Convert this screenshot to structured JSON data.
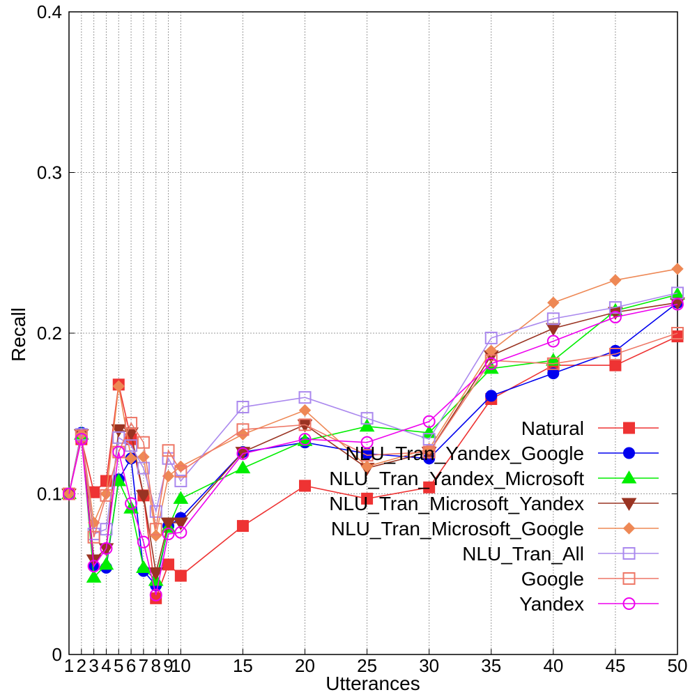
{
  "chart_data": {
    "type": "line",
    "xlabel": "Utterances",
    "ylabel": "Recall",
    "xlim": [
      1,
      50
    ],
    "ylim": [
      0,
      0.4
    ],
    "grid": true,
    "legend_position": "bottom-right",
    "x": [
      1,
      2,
      3,
      4,
      5,
      6,
      7,
      8,
      9,
      10,
      15,
      20,
      25,
      30,
      35,
      40,
      45,
      50
    ],
    "x_tick_labels": [
      "1",
      "2",
      "3",
      "4",
      "5",
      "6",
      "7",
      "8",
      "9",
      "10",
      "15",
      "20",
      "25",
      "30",
      "35",
      "40",
      "45",
      "50"
    ],
    "y_ticks": [
      0,
      0.1,
      0.2,
      0.3,
      0.4
    ],
    "y_tick_labels": [
      "0",
      "0.1",
      "0.2",
      "0.3",
      "0.4"
    ],
    "series": [
      {
        "name": "Natural",
        "color": "#ee3333",
        "marker": "square-filled",
        "values": [
          0.1,
          0.134,
          0.101,
          0.108,
          0.168,
          0.134,
          0.099,
          0.035,
          0.056,
          0.049,
          0.08,
          0.105,
          0.097,
          0.104,
          0.159,
          0.18,
          0.18,
          0.198
        ]
      },
      {
        "name": "NLU_Tran_Yandex_Google",
        "color": "#0000ee",
        "marker": "circle-filled",
        "values": [
          0.1,
          0.138,
          0.055,
          0.054,
          0.109,
          0.122,
          0.052,
          0.043,
          0.08,
          0.085,
          0.126,
          0.132,
          0.125,
          0.122,
          0.161,
          0.175,
          0.189,
          0.219
        ]
      },
      {
        "name": "NLU_Tran_Yandex_Microsoft",
        "color": "#00ee00",
        "marker": "triangle-up-filled",
        "values": [
          0.1,
          0.137,
          0.048,
          0.056,
          0.108,
          0.091,
          0.054,
          0.046,
          0.079,
          0.097,
          0.116,
          0.133,
          0.142,
          0.138,
          0.178,
          0.183,
          0.214,
          0.224
        ]
      },
      {
        "name": "NLU_Tran_Microsoft_Yandex",
        "color": "#993322",
        "marker": "triangle-down-filled",
        "values": [
          0.1,
          0.137,
          0.059,
          0.066,
          0.14,
          0.138,
          0.099,
          0.051,
          0.082,
          0.082,
          0.126,
          0.143,
          0.116,
          0.126,
          0.186,
          0.203,
          0.213,
          0.219
        ]
      },
      {
        "name": "NLU_Tran_Microsoft_Google",
        "color": "#ee8855",
        "marker": "diamond-filled",
        "values": [
          0.1,
          0.137,
          0.082,
          0.1,
          0.167,
          0.122,
          0.123,
          0.074,
          0.111,
          0.117,
          0.137,
          0.152,
          0.117,
          0.128,
          0.189,
          0.219,
          0.233,
          0.24
        ]
      },
      {
        "name": "NLU_Tran_All",
        "color": "#aa88ee",
        "marker": "square-open",
        "values": [
          0.1,
          0.137,
          0.075,
          0.078,
          0.135,
          0.13,
          0.116,
          0.089,
          0.122,
          0.108,
          0.154,
          0.16,
          0.147,
          0.134,
          0.197,
          0.209,
          0.216,
          0.225
        ]
      },
      {
        "name": "Google",
        "color": "#ee7766",
        "marker": "square-open",
        "values": [
          0.1,
          0.136,
          0.073,
          0.099,
          0.126,
          0.144,
          0.132,
          0.078,
          0.127,
          0.114,
          0.14,
          0.143,
          0.124,
          0.126,
          0.183,
          0.181,
          0.187,
          0.2
        ]
      },
      {
        "name": "Yandex",
        "color": "#ee00ee",
        "marker": "circle-open",
        "values": [
          0.1,
          0.134,
          0.055,
          0.066,
          0.126,
          0.094,
          0.07,
          0.037,
          0.075,
          0.076,
          0.125,
          0.134,
          0.132,
          0.145,
          0.181,
          0.195,
          0.21,
          0.218
        ]
      }
    ]
  }
}
